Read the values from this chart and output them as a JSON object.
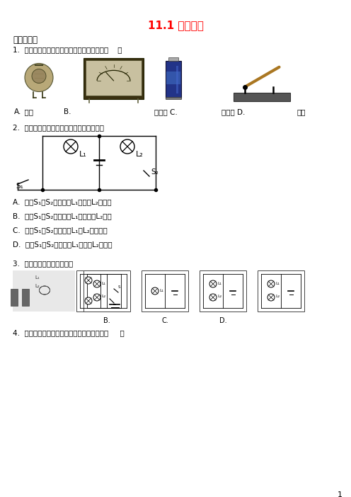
{
  "title": "11.1 认识电路",
  "title_color": "#FF0000",
  "bg_color": "#FFFFFF",
  "section1": "一、单选题",
  "q1": "1.  如图所示的电路元器件，属于用电器的是（    ）",
  "q2_text": "2.  在如图所示的电路中，说法正确的是（）",
  "q2_opts": [
    "A.  开关S₁、S₂都闭合，L₁发光，L₂不发光",
    "B.  开关S₁、S₂都闭合，L₁不发光，L₂发光",
    "C.  开关S₁、S₂都断开，L₁、L₂都不发光",
    "D.  开关S₁、S₂都断开，L₁发光，L₂不发光"
  ],
  "q3_text": "3.  与实物图对应的电路图是",
  "q4_text": "4.  如图所示，下列电路正处于短路状态的是（     ）",
  "comp_labels": [
    "A.",
    "电铃 B.",
    "电压表 C.",
    "干电池 D.",
    "开关"
  ],
  "page_num": "1",
  "text_color": "#000000",
  "gray_dark": "#333333",
  "gray_mid": "#888888",
  "gray_light": "#cccccc"
}
